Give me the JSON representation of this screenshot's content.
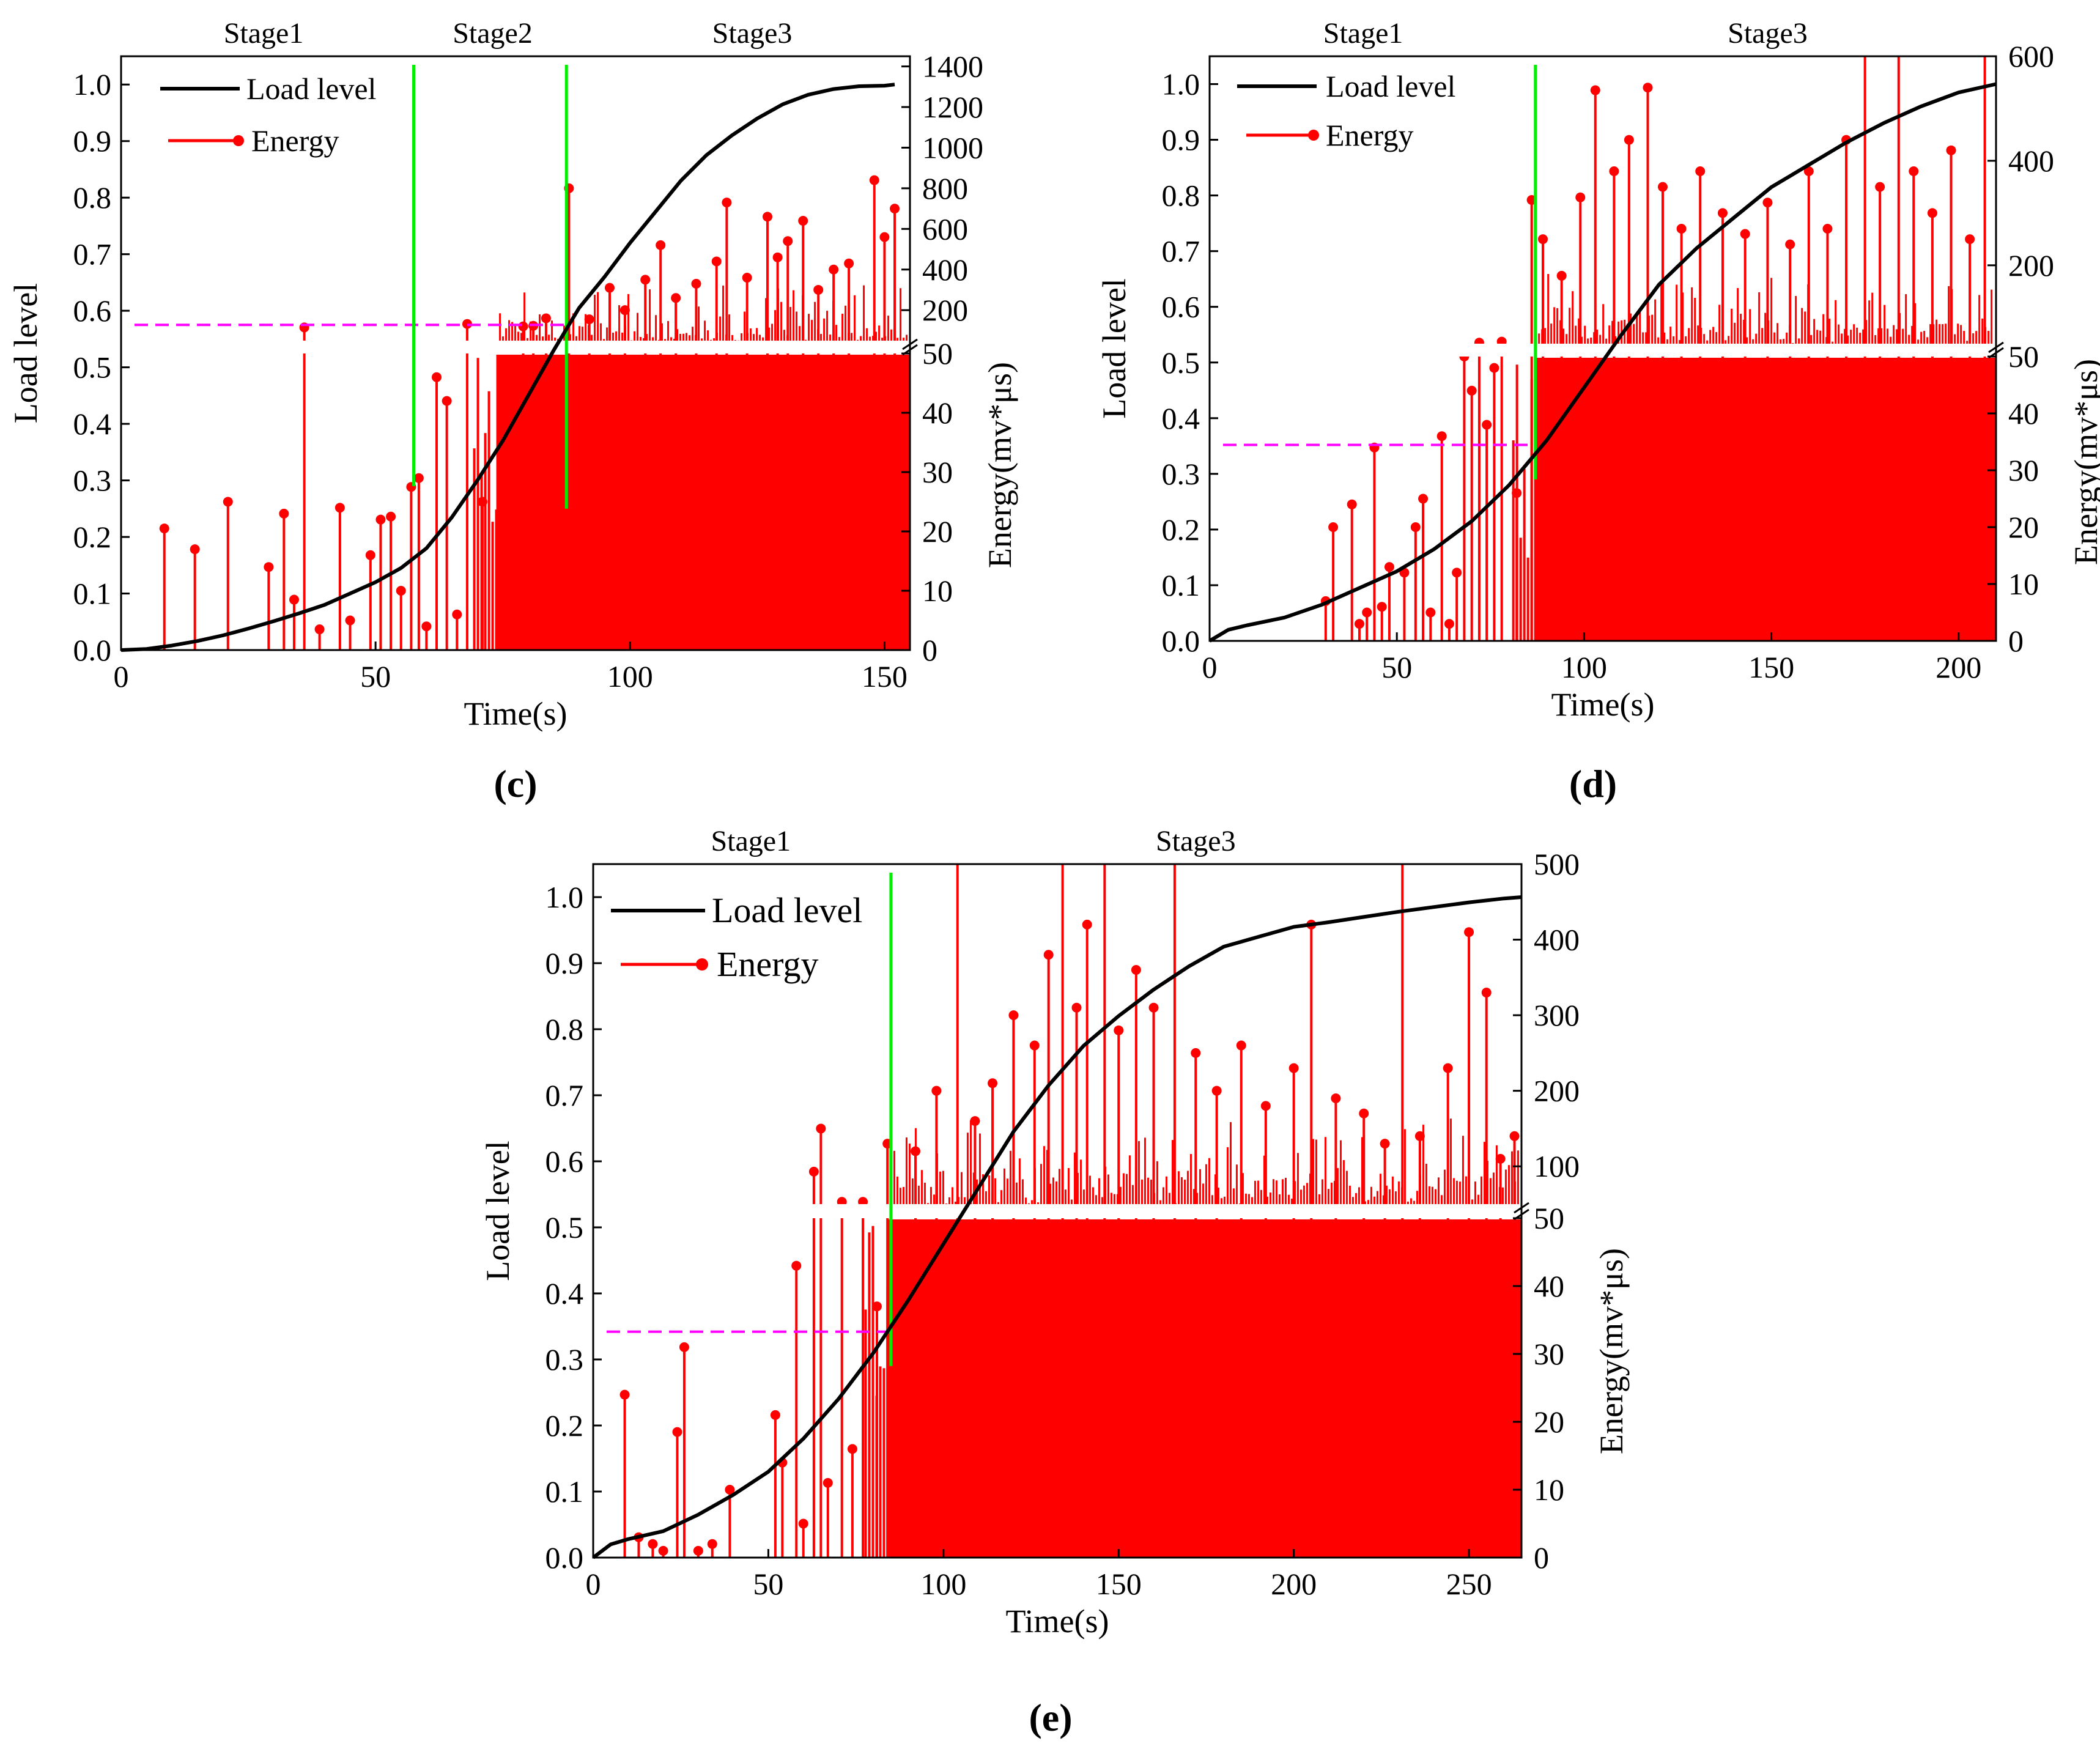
{
  "figure": {
    "colors": {
      "load": "#000000",
      "energy": "#ff0000",
      "stage_line": "#00ee00",
      "threshold": "#ff00ff",
      "axis": "#000000",
      "break_band": "#ffffff"
    }
  },
  "chart_data": [
    {
      "panel": "(c)",
      "type": "line",
      "xlabel": "Time(s)",
      "ylabel": "Load level",
      "y2label": "Energy(mv*μs)",
      "xlim": [
        0,
        155
      ],
      "ylim": [
        0,
        1.05
      ],
      "xticks": [
        0,
        50,
        100,
        150
      ],
      "yticks": [
        0.0,
        0.1,
        0.2,
        0.3,
        0.4,
        0.5,
        0.6,
        0.7,
        0.8,
        0.9,
        1.0
      ],
      "y2_lower_ticks": [
        0,
        10,
        20,
        30,
        40,
        50
      ],
      "y2_upper_ticks": [
        200,
        400,
        600,
        800,
        1000,
        1200,
        1400
      ],
      "y2_upper_max": 1450,
      "stages": [
        "Stage1",
        "Stage2",
        "Stage3"
      ],
      "stage_label_x": [
        28,
        73,
        124
      ],
      "stage_boundaries": [
        57.5,
        87.5
      ],
      "threshold_load": 0.575,
      "threshold_end": 87.5,
      "dense_start": 73,
      "legend": [
        "Load level",
        "Energy"
      ],
      "load_curve": {
        "x": [
          0,
          5,
          10,
          15,
          20,
          25,
          30,
          35,
          40,
          45,
          50,
          55,
          60,
          65,
          70,
          75,
          80,
          85,
          90,
          95,
          100,
          105,
          110,
          115,
          120,
          125,
          130,
          135,
          140,
          145,
          150,
          152
        ],
        "y": [
          0.0,
          0.002,
          0.008,
          0.016,
          0.026,
          0.038,
          0.051,
          0.065,
          0.08,
          0.1,
          0.12,
          0.145,
          0.18,
          0.235,
          0.3,
          0.37,
          0.45,
          0.53,
          0.605,
          0.66,
          0.72,
          0.775,
          0.83,
          0.875,
          0.91,
          0.94,
          0.965,
          0.982,
          0.992,
          0.997,
          0.998,
          1.0
        ]
      },
      "energy_events": [
        {
          "t": 8.5,
          "e": 20.5
        },
        {
          "t": 14.5,
          "e": 17
        },
        {
          "t": 21,
          "e": 25
        },
        {
          "t": 29,
          "e": 14
        },
        {
          "t": 32,
          "e": 23
        },
        {
          "t": 34,
          "e": 8.5
        },
        {
          "t": 36,
          "e": 115
        },
        {
          "t": 39,
          "e": 3.5
        },
        {
          "t": 43,
          "e": 24
        },
        {
          "t": 45,
          "e": 5
        },
        {
          "t": 49,
          "e": 16
        },
        {
          "t": 51,
          "e": 22
        },
        {
          "t": 53,
          "e": 22.5
        },
        {
          "t": 55,
          "e": 10
        },
        {
          "t": 57,
          "e": 27.5
        },
        {
          "t": 58.5,
          "e": 29
        },
        {
          "t": 60,
          "e": 4
        },
        {
          "t": 62,
          "e": 46
        },
        {
          "t": 64,
          "e": 42
        },
        {
          "t": 66,
          "e": 6
        },
        {
          "t": 68,
          "e": 132
        },
        {
          "t": 71,
          "e": 25
        },
        {
          "t": 76,
          "e": 47
        },
        {
          "t": 79,
          "e": 120
        },
        {
          "t": 81,
          "e": 123
        },
        {
          "t": 83.5,
          "e": 160
        },
        {
          "t": 88,
          "e": 800
        },
        {
          "t": 92,
          "e": 155
        },
        {
          "t": 96,
          "e": 310
        },
        {
          "t": 99,
          "e": 200
        },
        {
          "t": 103,
          "e": 350
        },
        {
          "t": 106,
          "e": 520
        },
        {
          "t": 109,
          "e": 260
        },
        {
          "t": 113,
          "e": 330
        },
        {
          "t": 117,
          "e": 440
        },
        {
          "t": 119,
          "e": 730
        },
        {
          "t": 123,
          "e": 360
        },
        {
          "t": 127,
          "e": 660
        },
        {
          "t": 129,
          "e": 460
        },
        {
          "t": 131,
          "e": 540
        },
        {
          "t": 134,
          "e": 640
        },
        {
          "t": 137,
          "e": 300
        },
        {
          "t": 140,
          "e": 400
        },
        {
          "t": 143,
          "e": 430
        },
        {
          "t": 148,
          "e": 840
        },
        {
          "t": 150,
          "e": 560
        },
        {
          "t": 152,
          "e": 700
        }
      ]
    },
    {
      "panel": "(d)",
      "type": "line",
      "xlabel": "Time(s)",
      "ylabel": "Load level",
      "y2label": "Energy(mv*μs)",
      "xlim": [
        0,
        210
      ],
      "ylim": [
        0,
        1.05
      ],
      "xticks": [
        0,
        50,
        100,
        150,
        200
      ],
      "yticks": [
        0.0,
        0.1,
        0.2,
        0.3,
        0.4,
        0.5,
        0.6,
        0.7,
        0.8,
        0.9,
        1.0
      ],
      "y2_lower_ticks": [
        0,
        10,
        20,
        30,
        40,
        50
      ],
      "y2_upper_ticks": [
        200,
        400,
        600
      ],
      "y2_upper_max": 600,
      "stages": [
        "Stage1",
        "Stage3"
      ],
      "stage_label_x": [
        41,
        149
      ],
      "stage_boundaries": [
        87
      ],
      "threshold_load": 0.352,
      "threshold_end": 87,
      "dense_start": 86,
      "legend": [
        "Load level",
        "Energy"
      ],
      "load_curve": {
        "x": [
          0,
          5,
          10,
          20,
          30,
          40,
          50,
          60,
          70,
          80,
          90,
          100,
          110,
          120,
          130,
          140,
          150,
          160,
          170,
          180,
          190,
          200,
          210
        ],
        "y": [
          0.0,
          0.02,
          0.028,
          0.042,
          0.065,
          0.095,
          0.125,
          0.165,
          0.215,
          0.28,
          0.36,
          0.455,
          0.55,
          0.64,
          0.705,
          0.76,
          0.815,
          0.855,
          0.895,
          0.93,
          0.96,
          0.985,
          1.0
        ]
      },
      "energy_events": [
        {
          "t": 31,
          "e": 7
        },
        {
          "t": 33,
          "e": 20
        },
        {
          "t": 38,
          "e": 24
        },
        {
          "t": 40,
          "e": 3
        },
        {
          "t": 42,
          "e": 5
        },
        {
          "t": 44,
          "e": 34
        },
        {
          "t": 46,
          "e": 6
        },
        {
          "t": 48,
          "e": 13
        },
        {
          "t": 52,
          "e": 12
        },
        {
          "t": 55,
          "e": 20
        },
        {
          "t": 57,
          "e": 25
        },
        {
          "t": 59,
          "e": 5
        },
        {
          "t": 62,
          "e": 36
        },
        {
          "t": 64,
          "e": 3
        },
        {
          "t": 66,
          "e": 12
        },
        {
          "t": 68,
          "e": 50
        },
        {
          "t": 70,
          "e": 44
        },
        {
          "t": 72,
          "e": 52
        },
        {
          "t": 74,
          "e": 38
        },
        {
          "t": 76,
          "e": 48
        },
        {
          "t": 78,
          "e": 54
        },
        {
          "t": 82,
          "e": 26
        },
        {
          "t": 86,
          "e": 325
        },
        {
          "t": 89,
          "e": 250
        },
        {
          "t": 94,
          "e": 180
        },
        {
          "t": 99,
          "e": 330
        },
        {
          "t": 103,
          "e": 535
        },
        {
          "t": 108,
          "e": 380
        },
        {
          "t": 112,
          "e": 440
        },
        {
          "t": 117,
          "e": 540
        },
        {
          "t": 121,
          "e": 350
        },
        {
          "t": 126,
          "e": 270
        },
        {
          "t": 131,
          "e": 380
        },
        {
          "t": 137,
          "e": 300
        },
        {
          "t": 143,
          "e": 260
        },
        {
          "t": 149,
          "e": 320
        },
        {
          "t": 155,
          "e": 240
        },
        {
          "t": 160,
          "e": 380
        },
        {
          "t": 165,
          "e": 270
        },
        {
          "t": 170,
          "e": 440
        },
        {
          "t": 175,
          "e": 600
        },
        {
          "t": 179,
          "e": 350
        },
        {
          "t": 184,
          "e": 600
        },
        {
          "t": 188,
          "e": 380
        },
        {
          "t": 193,
          "e": 300
        },
        {
          "t": 198,
          "e": 420
        },
        {
          "t": 203,
          "e": 250
        },
        {
          "t": 207,
          "e": 600
        }
      ]
    },
    {
      "panel": "(e)",
      "type": "line",
      "xlabel": "Time(s)",
      "ylabel": "Load level",
      "y2label": "Energy(mv*μs)",
      "xlim": [
        0,
        265
      ],
      "ylim": [
        0,
        1.05
      ],
      "xticks": [
        0,
        50,
        100,
        150,
        200,
        250
      ],
      "yticks": [
        0.0,
        0.1,
        0.2,
        0.3,
        0.4,
        0.5,
        0.6,
        0.7,
        0.8,
        0.9,
        1.0
      ],
      "y2_lower_ticks": [
        0,
        10,
        20,
        30,
        40,
        50
      ],
      "y2_upper_ticks": [
        100,
        200,
        300,
        400,
        500
      ],
      "y2_upper_max": 500,
      "stages": [
        "Stage1",
        "Stage3"
      ],
      "stage_label_x": [
        45,
        172
      ],
      "stage_boundaries": [
        85
      ],
      "threshold_load": 0.342,
      "threshold_end": 85,
      "dense_start": 83,
      "legend": [
        "Load level",
        "Energy"
      ],
      "load_curve": {
        "x": [
          0,
          5,
          10,
          20,
          30,
          40,
          50,
          60,
          70,
          80,
          90,
          100,
          110,
          120,
          130,
          140,
          150,
          160,
          170,
          180,
          190,
          200,
          210,
          220,
          230,
          240,
          250,
          260,
          265
        ],
        "y": [
          0.0,
          0.02,
          0.028,
          0.04,
          0.065,
          0.095,
          0.13,
          0.18,
          0.24,
          0.31,
          0.39,
          0.475,
          0.56,
          0.645,
          0.715,
          0.775,
          0.82,
          0.86,
          0.895,
          0.925,
          0.94,
          0.955,
          0.962,
          0.97,
          0.978,
          0.985,
          0.992,
          0.998,
          1.0
        ]
      },
      "energy_events": [
        {
          "t": 9,
          "e": 24
        },
        {
          "t": 13,
          "e": 3
        },
        {
          "t": 17,
          "e": 2
        },
        {
          "t": 20,
          "e": 1
        },
        {
          "t": 24,
          "e": 18.5
        },
        {
          "t": 26,
          "e": 31
        },
        {
          "t": 30,
          "e": 1
        },
        {
          "t": 34,
          "e": 2
        },
        {
          "t": 39,
          "e": 10
        },
        {
          "t": 52,
          "e": 21
        },
        {
          "t": 54,
          "e": 14
        },
        {
          "t": 58,
          "e": 43
        },
        {
          "t": 60,
          "e": 5
        },
        {
          "t": 63,
          "e": 93
        },
        {
          "t": 65,
          "e": 150
        },
        {
          "t": 67,
          "e": 11
        },
        {
          "t": 71,
          "e": 53
        },
        {
          "t": 74,
          "e": 16
        },
        {
          "t": 77,
          "e": 53
        },
        {
          "t": 81,
          "e": 37
        },
        {
          "t": 84,
          "e": 130
        },
        {
          "t": 92,
          "e": 120
        },
        {
          "t": 98,
          "e": 200
        },
        {
          "t": 104,
          "e": 500
        },
        {
          "t": 109,
          "e": 160
        },
        {
          "t": 114,
          "e": 210
        },
        {
          "t": 120,
          "e": 300
        },
        {
          "t": 126,
          "e": 260
        },
        {
          "t": 130,
          "e": 380
        },
        {
          "t": 134,
          "e": 500
        },
        {
          "t": 138,
          "e": 310
        },
        {
          "t": 141,
          "e": 420
        },
        {
          "t": 146,
          "e": 500
        },
        {
          "t": 150,
          "e": 280
        },
        {
          "t": 155,
          "e": 360
        },
        {
          "t": 160,
          "e": 310
        },
        {
          "t": 166,
          "e": 500
        },
        {
          "t": 172,
          "e": 250
        },
        {
          "t": 178,
          "e": 200
        },
        {
          "t": 185,
          "e": 260
        },
        {
          "t": 192,
          "e": 180
        },
        {
          "t": 200,
          "e": 230
        },
        {
          "t": 205,
          "e": 420
        },
        {
          "t": 212,
          "e": 190
        },
        {
          "t": 220,
          "e": 170
        },
        {
          "t": 226,
          "e": 130
        },
        {
          "t": 231,
          "e": 500
        },
        {
          "t": 236,
          "e": 140
        },
        {
          "t": 244,
          "e": 230
        },
        {
          "t": 250,
          "e": 410
        },
        {
          "t": 255,
          "e": 330
        },
        {
          "t": 259,
          "e": 110
        },
        {
          "t": 263,
          "e": 140
        }
      ]
    }
  ]
}
